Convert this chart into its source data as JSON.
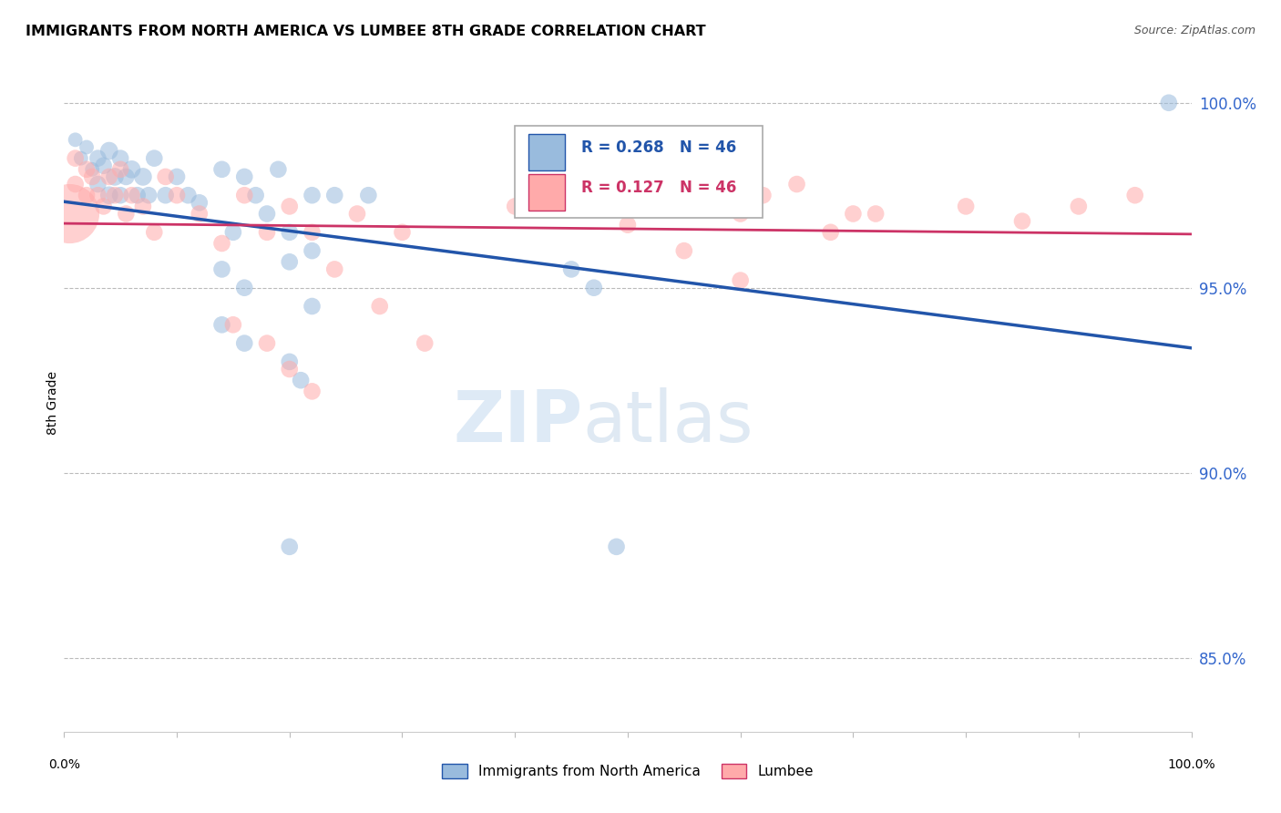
{
  "title": "IMMIGRANTS FROM NORTH AMERICA VS LUMBEE 8TH GRADE CORRELATION CHART",
  "source": "Source: ZipAtlas.com",
  "ylabel": "8th Grade",
  "blue_R": 0.268,
  "blue_N": 46,
  "pink_R": 0.127,
  "pink_N": 46,
  "legend_blue_label": "Immigrants from North America",
  "legend_pink_label": "Lumbee",
  "blue_color": "#99BBDD",
  "pink_color": "#FFAAAA",
  "line_blue_color": "#2255AA",
  "line_pink_color": "#CC3366",
  "xmin": 0.0,
  "xmax": 1.0,
  "ymin": 0.83,
  "ymax": 1.008,
  "yticks": [
    0.85,
    0.9,
    0.95,
    1.0
  ],
  "ytick_labels": [
    "85.0%",
    "90.0%",
    "95.0%",
    "100.0%"
  ],
  "blue_x": [
    0.01,
    0.015,
    0.02,
    0.025,
    0.03,
    0.03,
    0.035,
    0.04,
    0.04,
    0.045,
    0.05,
    0.05,
    0.055,
    0.06,
    0.065,
    0.07,
    0.075,
    0.08,
    0.09,
    0.1,
    0.11,
    0.12,
    0.14,
    0.16,
    0.17,
    0.19,
    0.22,
    0.24,
    0.27,
    0.14,
    0.16,
    0.2,
    0.22,
    0.45,
    0.47,
    0.2,
    0.21,
    0.98,
    0.15,
    0.18,
    0.2,
    0.22,
    0.14,
    0.16,
    0.2,
    0.49
  ],
  "blue_y": [
    0.99,
    0.985,
    0.988,
    0.982,
    0.985,
    0.978,
    0.983,
    0.987,
    0.975,
    0.98,
    0.985,
    0.975,
    0.98,
    0.982,
    0.975,
    0.98,
    0.975,
    0.985,
    0.975,
    0.98,
    0.975,
    0.973,
    0.982,
    0.98,
    0.975,
    0.982,
    0.975,
    0.975,
    0.975,
    0.955,
    0.95,
    0.957,
    0.945,
    0.955,
    0.95,
    0.93,
    0.925,
    1.0,
    0.965,
    0.97,
    0.965,
    0.96,
    0.94,
    0.935,
    0.88,
    0.88
  ],
  "blue_sizes": [
    130,
    130,
    130,
    130,
    180,
    180,
    180,
    200,
    200,
    200,
    180,
    180,
    180,
    200,
    180,
    200,
    180,
    180,
    180,
    180,
    180,
    180,
    180,
    180,
    180,
    180,
    180,
    180,
    180,
    180,
    180,
    180,
    180,
    180,
    180,
    180,
    180,
    180,
    180,
    180,
    180,
    180,
    180,
    180,
    180,
    180
  ],
  "pink_x": [
    0.005,
    0.01,
    0.01,
    0.02,
    0.02,
    0.025,
    0.03,
    0.035,
    0.04,
    0.045,
    0.05,
    0.055,
    0.06,
    0.07,
    0.08,
    0.09,
    0.1,
    0.12,
    0.14,
    0.16,
    0.18,
    0.2,
    0.22,
    0.26,
    0.3,
    0.4,
    0.5,
    0.6,
    0.65,
    0.7,
    0.8,
    0.85,
    0.9,
    0.95,
    0.55,
    0.62,
    0.68,
    0.72,
    0.15,
    0.18,
    0.2,
    0.22,
    0.24,
    0.28,
    0.32,
    0.6
  ],
  "pink_y": [
    0.97,
    0.985,
    0.978,
    0.982,
    0.975,
    0.98,
    0.975,
    0.972,
    0.98,
    0.975,
    0.982,
    0.97,
    0.975,
    0.972,
    0.965,
    0.98,
    0.975,
    0.97,
    0.962,
    0.975,
    0.965,
    0.972,
    0.965,
    0.97,
    0.965,
    0.972,
    0.967,
    0.97,
    0.978,
    0.97,
    0.972,
    0.968,
    0.972,
    0.975,
    0.96,
    0.975,
    0.965,
    0.97,
    0.94,
    0.935,
    0.928,
    0.922,
    0.955,
    0.945,
    0.935,
    0.952
  ],
  "pink_sizes": [
    2200,
    180,
    180,
    180,
    180,
    180,
    180,
    180,
    180,
    180,
    180,
    180,
    180,
    180,
    180,
    180,
    180,
    180,
    180,
    180,
    180,
    180,
    180,
    180,
    180,
    180,
    180,
    180,
    180,
    180,
    180,
    180,
    180,
    180,
    180,
    180,
    180,
    180,
    180,
    180,
    180,
    180,
    180,
    180,
    180,
    180
  ]
}
